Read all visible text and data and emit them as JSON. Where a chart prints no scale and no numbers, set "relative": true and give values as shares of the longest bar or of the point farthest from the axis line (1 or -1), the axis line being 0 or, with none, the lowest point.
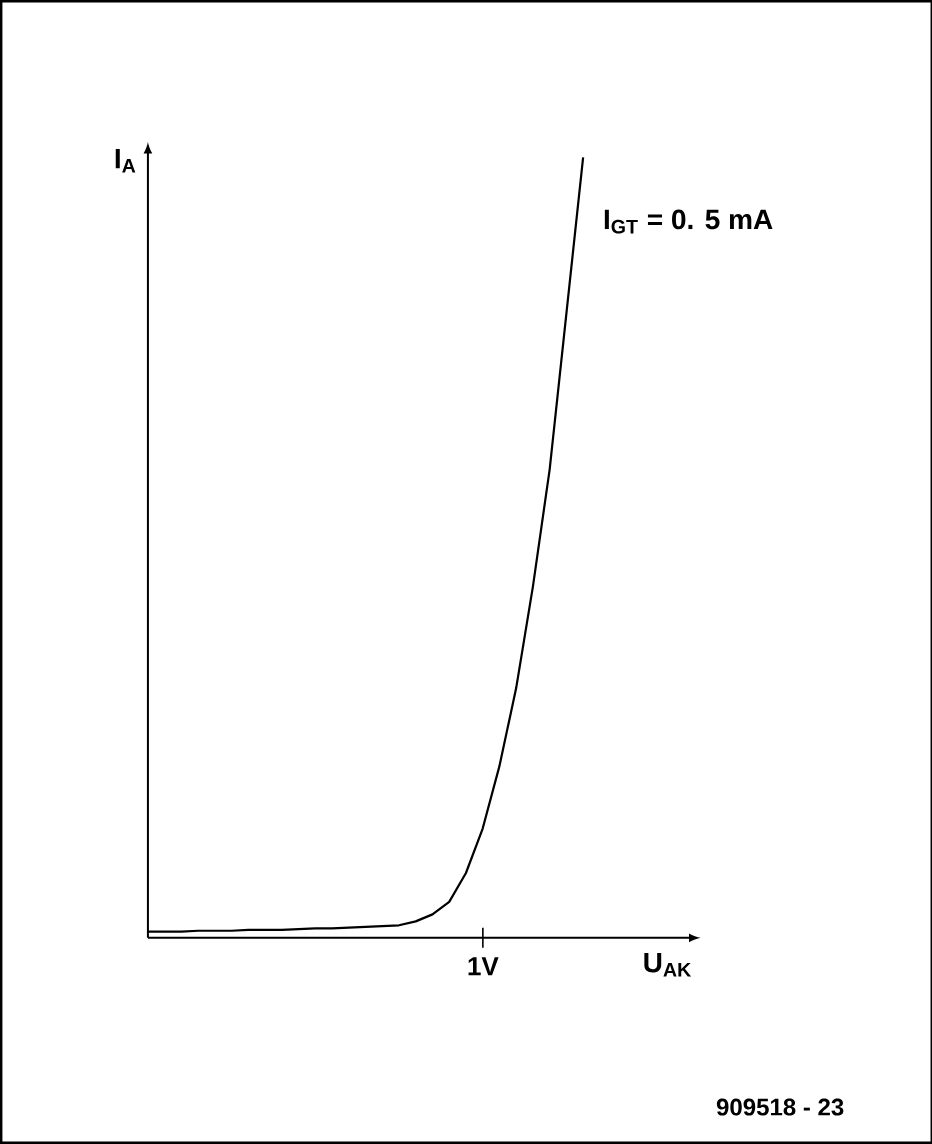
{
  "chart_data": {
    "type": "line",
    "relative": true,
    "xlabel": "U$_{AK}$",
    "ylabel": "I$_{A}$",
    "categories": [
      null,
      null,
      null,
      null,
      null,
      null,
      null,
      null,
      null,
      null,
      null,
      null,
      null,
      null,
      null,
      null,
      null,
      null,
      null,
      null,
      null,
      null,
      null,
      null,
      null,
      null,
      null
    ],
    "annotations": [
      "1V",
      "909518 - 23"
    ],
    "series": [
      {
        "name": "I$_{GT}$ = 0. 5 mA",
        "color": "#000000",
        "values": [
          0.008,
          0.008,
          0.008,
          0.009,
          0.009,
          0.009,
          0.01,
          0.01,
          0.01,
          0.011,
          0.012,
          0.012,
          0.013,
          0.014,
          0.015,
          0.016,
          0.021,
          0.03,
          0.046,
          0.083,
          0.14,
          0.22,
          0.32,
          0.45,
          0.6,
          0.8,
          1.0
        ]
      }
    ]
  }
}
